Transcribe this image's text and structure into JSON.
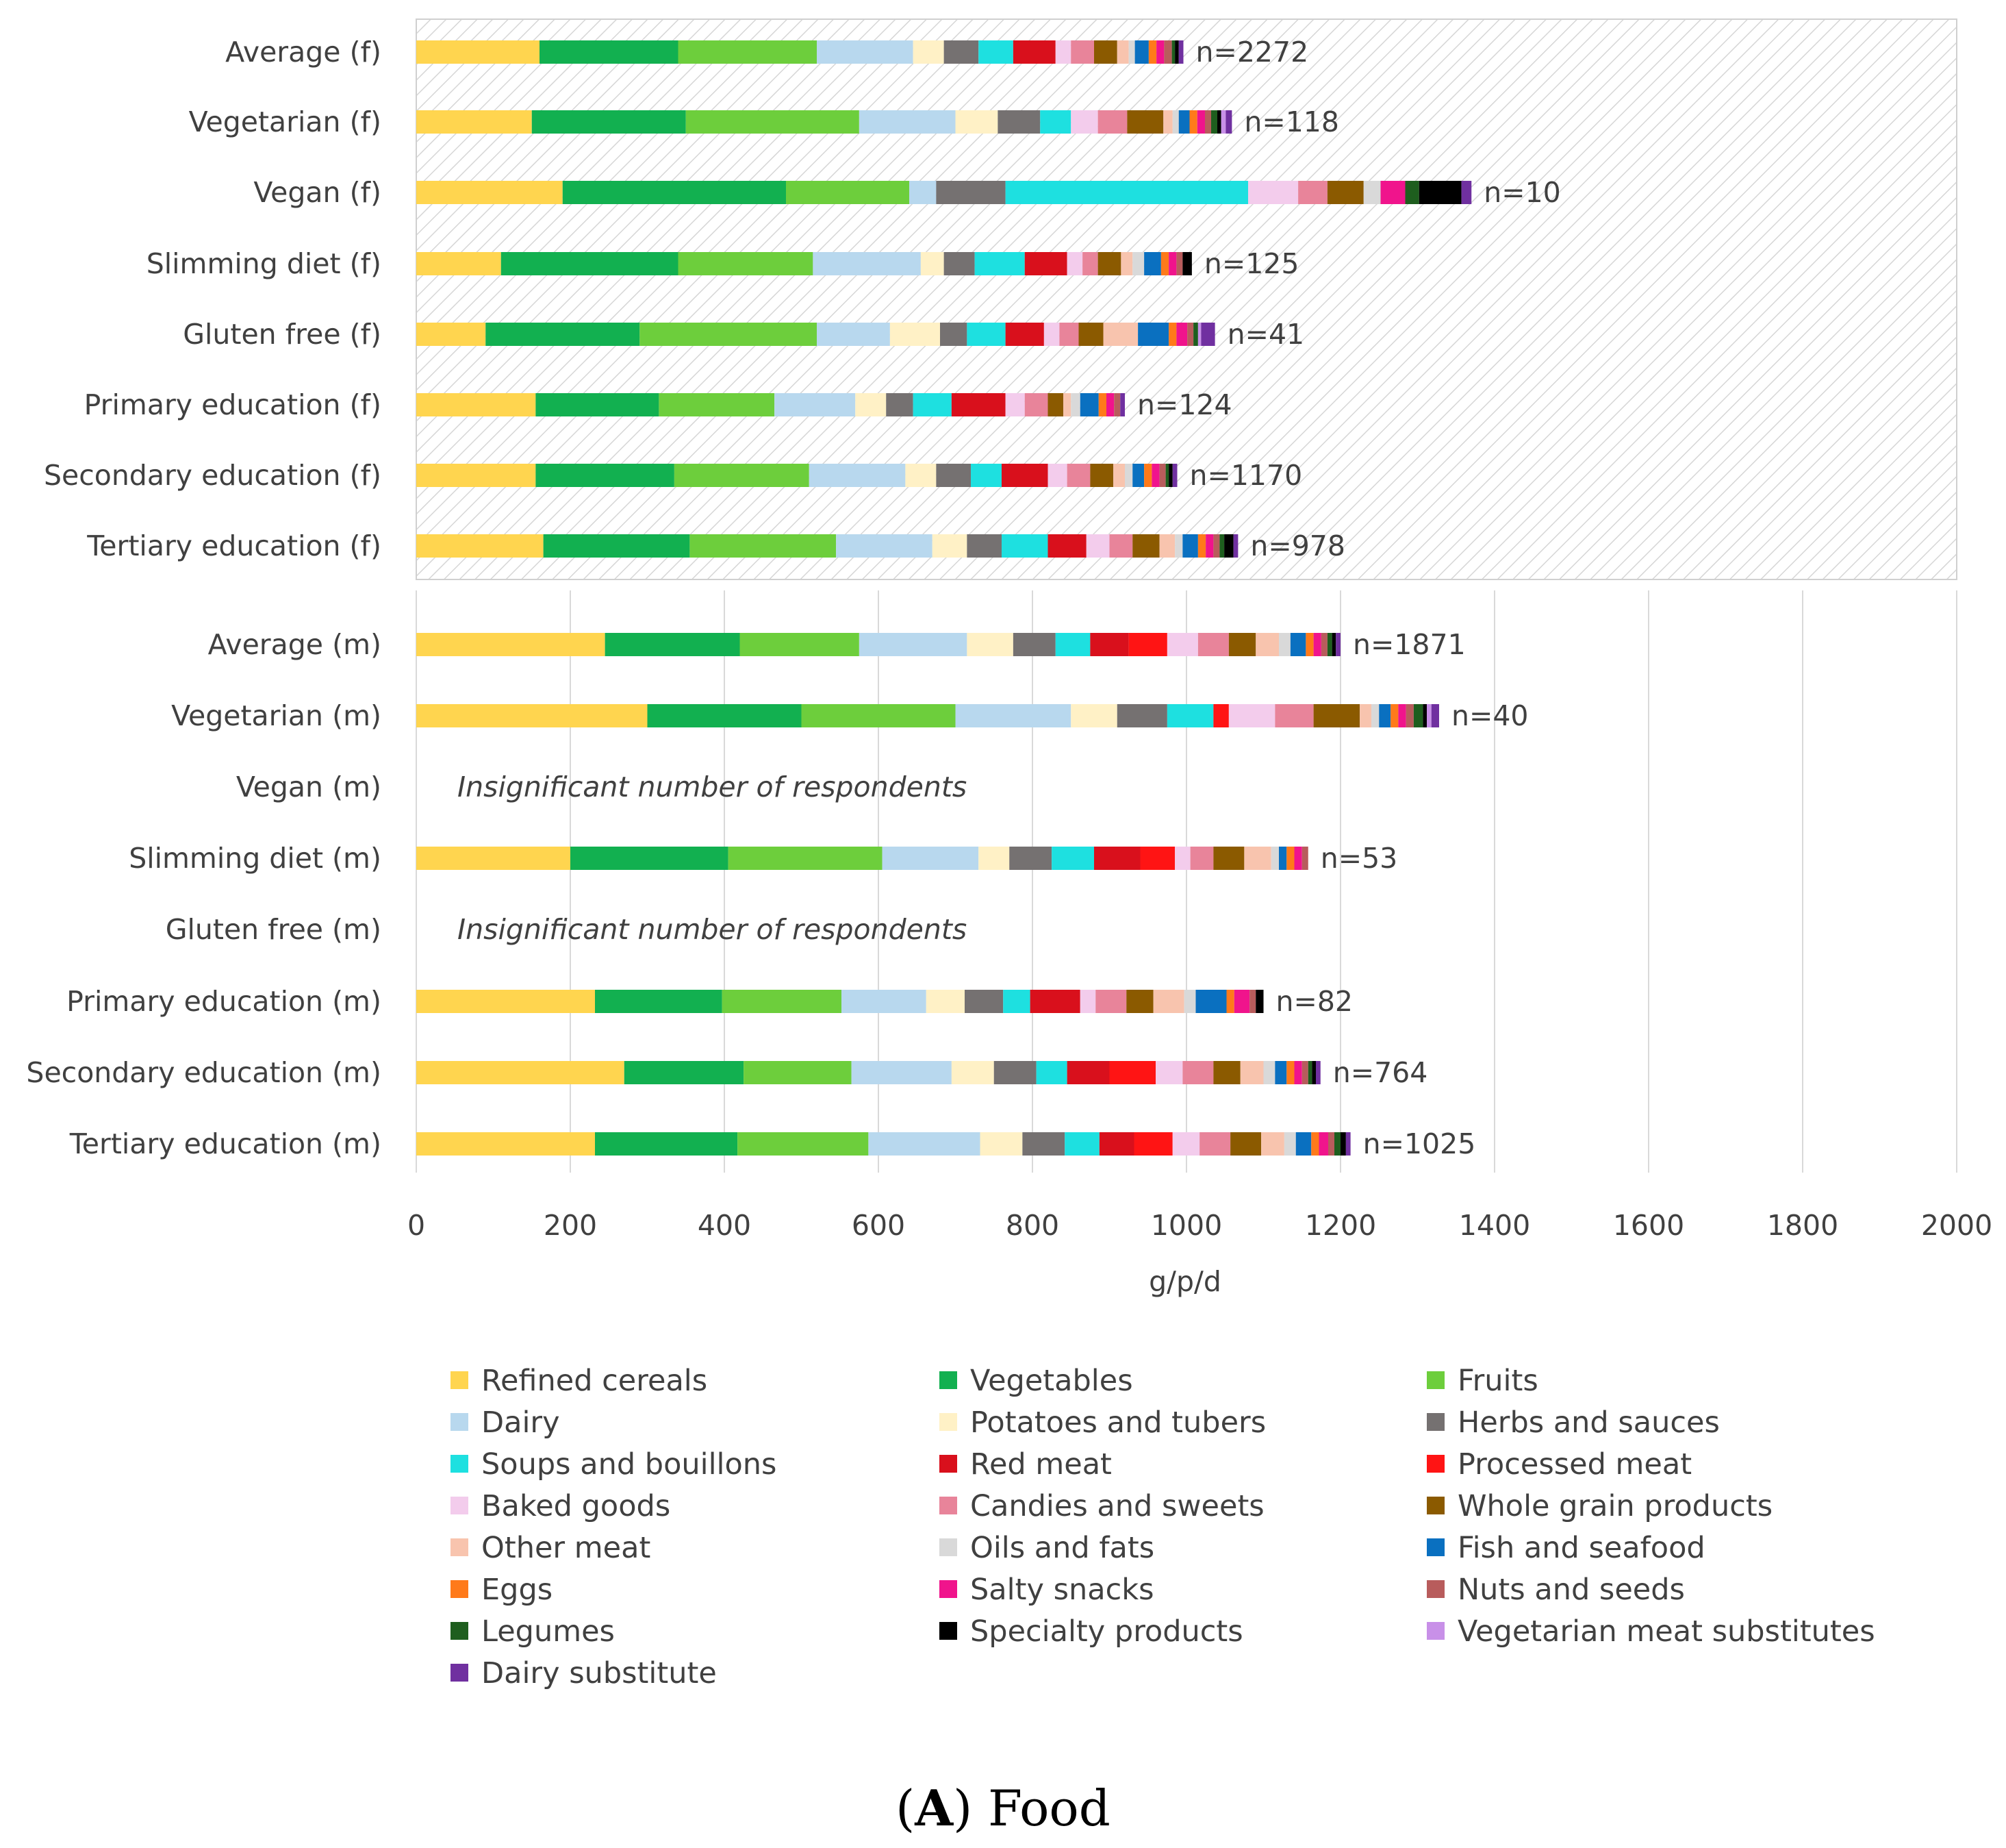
{
  "chart_data": {
    "type": "stacked-bar-horizontal",
    "xlabel": "g/p/d",
    "xlim": [
      0,
      2000
    ],
    "xticks": [
      "0",
      "200",
      "400",
      "600",
      "800",
      "1000",
      "1200",
      "1400",
      "1600",
      "1800",
      "2000"
    ],
    "caption": {
      "letter": "A",
      "open": "(",
      "close": ")",
      "title": " Food"
    },
    "colors": {
      "Refined cereals": "#FFD54F",
      "Vegetables": "#12B050",
      "Fruits": "#6DCE3C",
      "Dairy": "#B8D8EE",
      "Potatoes and tubers": "#FFF1C6",
      "Herbs and sauces": "#757171",
      "Soups and bouillons": "#1EE0E0",
      "Red meat": "#D9101C",
      "Processed meat": "#FF1414",
      "Baked goods": "#F3CCEC",
      "Candies and sweets": "#E8849A",
      "Whole grain products": "#8B5A00",
      "Other meat": "#F8C4AE",
      "Oils and fats": "#D9D9D9",
      "Fish and seafood": "#0A70C0",
      "Eggs": "#FF7A1A",
      "Salty snacks": "#F0148C",
      "Nuts and seeds": "#B85C5C",
      "Legumes": "#1E5E1E",
      "Specialty products": "#000000",
      "Vegetarian meat substitutes": "#C890E8",
      "Dairy substitute": "#7030A0"
    },
    "series_order": [
      "Refined cereals",
      "Vegetables",
      "Fruits",
      "Dairy",
      "Potatoes and tubers",
      "Herbs and sauces",
      "Soups and bouillons",
      "Red meat",
      "Processed meat",
      "Baked goods",
      "Candies and sweets",
      "Whole grain products",
      "Other meat",
      "Oils and fats",
      "Fish and seafood",
      "Eggs",
      "Salty snacks",
      "Nuts and seeds",
      "Legumes",
      "Specialty products",
      "Vegetarian meat substitutes",
      "Dairy substitute"
    ],
    "categories": [
      {
        "label": "Average (f)",
        "n": "n=2272",
        "values": [
          160,
          180,
          180,
          125,
          40,
          45,
          45,
          55,
          0,
          20,
          30,
          30,
          15,
          8,
          18,
          10,
          10,
          10,
          4,
          5,
          0,
          6
        ]
      },
      {
        "label": "Vegetarian (f)",
        "n": "n=118",
        "values": [
          150,
          200,
          225,
          125,
          55,
          55,
          40,
          0,
          0,
          35,
          38,
          47,
          12,
          8,
          14,
          10,
          10,
          8,
          8,
          5,
          6,
          8
        ]
      },
      {
        "label": "Vegan (f)",
        "n": "n=10",
        "values": [
          190,
          290,
          160,
          35,
          0,
          90,
          315,
          0,
          0,
          65,
          38,
          47,
          0,
          22,
          0,
          0,
          32,
          0,
          18,
          55,
          0,
          13
        ]
      },
      {
        "label": "Slimming diet (f)",
        "n": "n=125",
        "values": [
          110,
          230,
          175,
          140,
          30,
          40,
          65,
          55,
          0,
          20,
          20,
          30,
          15,
          15,
          22,
          10,
          10,
          8,
          0,
          12,
          0,
          0
        ]
      },
      {
        "label": "Gluten free (f)",
        "n": "n=41",
        "values": [
          90,
          200,
          230,
          95,
          65,
          35,
          50,
          50,
          0,
          20,
          25,
          32,
          45,
          0,
          40,
          10,
          14,
          8,
          6,
          0,
          4,
          18
        ]
      },
      {
        "label": "Primary education (f)",
        "n": "n=124",
        "values": [
          155,
          160,
          150,
          105,
          40,
          35,
          50,
          70,
          0,
          25,
          30,
          20,
          10,
          12,
          24,
          10,
          10,
          8,
          0,
          0,
          0,
          6
        ]
      },
      {
        "label": "Secondary education (f)",
        "n": "n=1170",
        "values": [
          155,
          180,
          175,
          125,
          40,
          45,
          40,
          60,
          0,
          25,
          30,
          30,
          15,
          10,
          15,
          10,
          10,
          8,
          4,
          5,
          0,
          6
        ]
      },
      {
        "label": "Tertiary education (f)",
        "n": "n=978",
        "values": [
          165,
          190,
          190,
          125,
          45,
          45,
          60,
          50,
          0,
          30,
          30,
          35,
          20,
          10,
          20,
          10,
          10,
          8,
          6,
          12,
          0,
          6
        ]
      },
      {
        "label": "Average (m)",
        "n": "n=1871",
        "values": [
          245,
          175,
          155,
          140,
          60,
          55,
          45,
          50,
          50,
          40,
          40,
          35,
          30,
          15,
          20,
          10,
          10,
          8,
          6,
          5,
          0,
          6
        ]
      },
      {
        "label": "Vegetarian (m)",
        "n": "n=40",
        "values": [
          300,
          200,
          200,
          150,
          60,
          65,
          60,
          0,
          20,
          60,
          50,
          60,
          15,
          10,
          15,
          10,
          10,
          10,
          12,
          5,
          6,
          10
        ]
      },
      {
        "label": "Vegan (m)",
        "n": "",
        "note": "Insignificant number of respondents",
        "values": []
      },
      {
        "label": "Slimming diet (m)",
        "n": "n=53",
        "values": [
          200,
          205,
          200,
          125,
          40,
          55,
          55,
          60,
          45,
          20,
          30,
          40,
          35,
          10,
          10,
          10,
          10,
          8,
          0,
          0,
          0,
          0
        ]
      },
      {
        "label": "Gluten free (m)",
        "n": "",
        "note": "Insignificant number of respondents",
        "values": []
      },
      {
        "label": "Primary education (m)",
        "n": "n=82",
        "values": [
          232,
          165,
          155,
          110,
          50,
          50,
          35,
          65,
          0,
          20,
          40,
          35,
          40,
          15,
          40,
          10,
          20,
          8,
          0,
          10,
          0,
          0
        ]
      },
      {
        "label": "Secondary education (m)",
        "n": "n=764",
        "values": [
          270,
          155,
          140,
          130,
          55,
          55,
          40,
          55,
          60,
          35,
          40,
          35,
          30,
          15,
          15,
          10,
          10,
          8,
          5,
          5,
          0,
          6
        ]
      },
      {
        "label": "Tertiary education (m)",
        "n": "n=1025",
        "values": [
          232,
          185,
          170,
          145,
          55,
          55,
          45,
          45,
          50,
          35,
          40,
          40,
          30,
          15,
          20,
          10,
          12,
          8,
          8,
          7,
          0,
          6
        ]
      }
    ],
    "legend": [
      [
        "Refined cereals",
        "Vegetables",
        "Fruits"
      ],
      [
        "Dairy",
        "Potatoes and tubers",
        "Herbs and sauces"
      ],
      [
        "Soups and bouillons",
        "Red meat",
        "Processed meat"
      ],
      [
        "Baked goods",
        "Candies and sweets",
        "Whole grain products"
      ],
      [
        "Other meat",
        "Oils and fats",
        "Fish and seafood"
      ],
      [
        "Eggs",
        "Salty snacks",
        "Nuts and seeds"
      ],
      [
        "Legumes",
        "Specialty products",
        "Vegetarian meat substitutes"
      ],
      [
        "Dairy substitute"
      ]
    ]
  }
}
